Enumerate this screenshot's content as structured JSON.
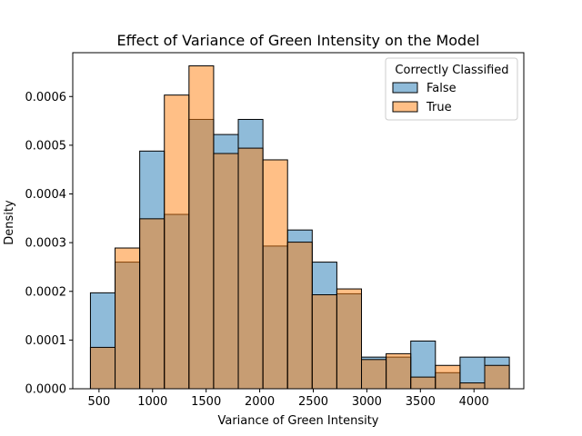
{
  "chart_data": {
    "type": "bar",
    "subtype": "overlaid-histogram",
    "title": "Effect of Variance of Green Intensity on the Model",
    "xlabel": "Variance of Green Intensity",
    "ylabel": "Density",
    "xlim": [
      255,
      4465
    ],
    "ylim": [
      0,
      0.00069
    ],
    "xticks": [
      500,
      1000,
      1500,
      2000,
      2500,
      3000,
      3500,
      4000
    ],
    "yticks": [
      0,
      0.0001,
      0.0002,
      0.0003,
      0.0004,
      0.0005,
      0.0006
    ],
    "ytick_labels": [
      "0.0000",
      "0.0001",
      "0.0002",
      "0.0003",
      "0.0004",
      "0.0005",
      "0.0006"
    ],
    "bin_edges": [
      420,
      650,
      880,
      1110,
      1340,
      1570,
      1800,
      2030,
      2260,
      2490,
      2720,
      2950,
      3180,
      3410,
      3640,
      3870,
      4100,
      4330
    ],
    "series": [
      {
        "name": "False",
        "color": "#1f77b4",
        "values": [
          0.000197,
          0.00026,
          0.000488,
          0.000358,
          0.000553,
          0.000522,
          0.000553,
          0.000293,
          0.000326,
          0.00026,
          0.000195,
          6.5e-05,
          6.5e-05,
          9.8e-05,
          3.3e-05,
          6.5e-05,
          6.5e-05
        ]
      },
      {
        "name": "True",
        "color": "#ff7f0e",
        "values": [
          8.5e-05,
          0.000289,
          0.000349,
          0.000603,
          0.000663,
          0.000483,
          0.000494,
          0.00047,
          0.000301,
          0.000193,
          0.000205,
          6e-05,
          7.2e-05,
          2.4e-05,
          4.8e-05,
          1.2e-05,
          4.8e-05
        ]
      }
    ],
    "legend": {
      "title": "Correctly Classified",
      "placement": "top-right",
      "entries": [
        "False",
        "True"
      ]
    },
    "grid": false
  }
}
